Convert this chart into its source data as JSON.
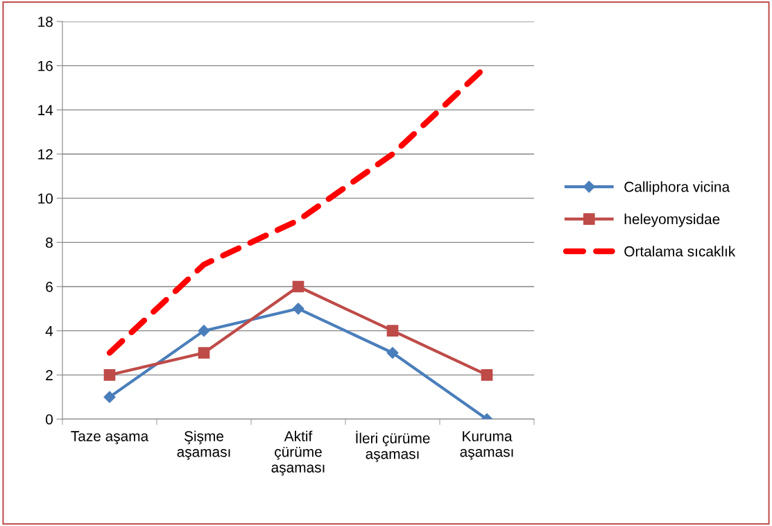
{
  "chart_data": {
    "type": "line",
    "categories": [
      "Taze aşama",
      "Şişme\naşaması",
      "Aktif\nçürüme\naşaması",
      "İleri çürüme\naşaması",
      "Kuruma\naşaması"
    ],
    "series": [
      {
        "name": "Calliphora vicina",
        "color": "#4a7ebb",
        "values": [
          1,
          4,
          5,
          3,
          0
        ],
        "marker": "diamond",
        "line_style": "solid"
      },
      {
        "name": "heleyomysidae",
        "color": "#be4b48",
        "values": [
          2,
          3,
          6,
          4,
          2
        ],
        "marker": "square",
        "line_style": "solid"
      },
      {
        "name": "Ortalama sıcaklık",
        "color": "#ff0000",
        "values": [
          3,
          7,
          9,
          12,
          16
        ],
        "marker": "none",
        "line_style": "dashed"
      }
    ],
    "ylim": [
      0,
      18
    ],
    "yticks": [
      0,
      2,
      4,
      6,
      8,
      10,
      12,
      14,
      16,
      18
    ],
    "grid": "y",
    "legend": "right"
  }
}
